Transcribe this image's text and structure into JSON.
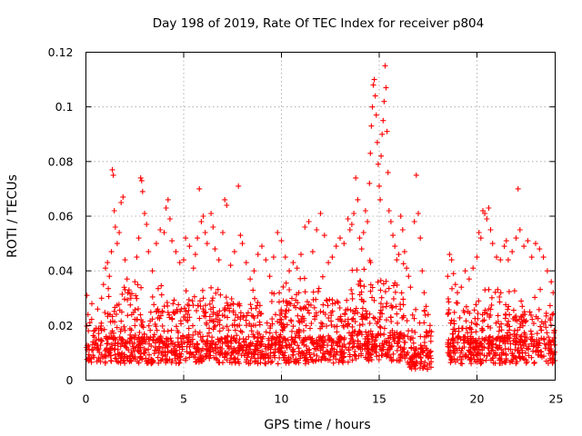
{
  "chart_data": {
    "type": "scatter",
    "title": "Day 198 of 2019, Rate Of TEC Index for receiver p804",
    "xlabel": "GPS time / hours",
    "ylabel": "ROTI / TECUs",
    "xlim": [
      0,
      24
    ],
    "ylim": [
      0,
      0.12
    ],
    "xticks": [
      0,
      5,
      10,
      15,
      20,
      25
    ],
    "yticks": [
      0,
      0.02,
      0.04,
      0.06,
      0.08,
      0.1,
      0.12
    ],
    "xtick_labels": [
      "0",
      "5",
      "10",
      "15",
      "20",
      "25"
    ],
    "ytick_labels": [
      "0",
      "0.02",
      "0.04",
      "0.06",
      "0.08",
      "0.1",
      "0.12"
    ],
    "grid": true,
    "marker": "+",
    "color": "#ff0000",
    "series": [
      {
        "name": "p804",
        "points": [
          [
            0.05,
            0.031
          ],
          [
            0.1,
            0.024
          ],
          [
            0.2,
            0.021
          ],
          [
            0.3,
            0.028
          ],
          [
            0.4,
            0.018
          ],
          [
            0.6,
            0.026
          ],
          [
            0.8,
            0.03
          ],
          [
            0.9,
            0.035
          ],
          [
            1.0,
            0.041
          ],
          [
            1.1,
            0.043
          ],
          [
            1.2,
            0.038
          ],
          [
            1.3,
            0.047
          ],
          [
            1.35,
            0.077
          ],
          [
            1.4,
            0.075
          ],
          [
            1.45,
            0.062
          ],
          [
            1.5,
            0.056
          ],
          [
            1.6,
            0.05
          ],
          [
            1.7,
            0.054
          ],
          [
            1.8,
            0.065
          ],
          [
            1.9,
            0.067
          ],
          [
            2.0,
            0.044
          ],
          [
            2.1,
            0.037
          ],
          [
            2.2,
            0.033
          ],
          [
            2.3,
            0.03
          ],
          [
            2.5,
            0.036
          ],
          [
            2.6,
            0.045
          ],
          [
            2.7,
            0.052
          ],
          [
            2.8,
            0.074
          ],
          [
            2.85,
            0.073
          ],
          [
            2.9,
            0.069
          ],
          [
            3.0,
            0.061
          ],
          [
            3.1,
            0.057
          ],
          [
            3.2,
            0.047
          ],
          [
            3.4,
            0.04
          ],
          [
            3.6,
            0.05
          ],
          [
            3.8,
            0.055
          ],
          [
            4.0,
            0.054
          ],
          [
            4.1,
            0.063
          ],
          [
            4.2,
            0.066
          ],
          [
            4.3,
            0.059
          ],
          [
            4.4,
            0.051
          ],
          [
            4.6,
            0.047
          ],
          [
            4.8,
            0.043
          ],
          [
            5.0,
            0.044
          ],
          [
            5.1,
            0.052
          ],
          [
            5.3,
            0.049
          ],
          [
            5.5,
            0.041
          ],
          [
            5.6,
            0.046
          ],
          [
            5.7,
            0.052
          ],
          [
            5.8,
            0.07
          ],
          [
            5.9,
            0.058
          ],
          [
            6.0,
            0.06
          ],
          [
            6.1,
            0.054
          ],
          [
            6.2,
            0.05
          ],
          [
            6.4,
            0.061
          ],
          [
            6.5,
            0.056
          ],
          [
            6.6,
            0.048
          ],
          [
            6.8,
            0.044
          ],
          [
            7.0,
            0.054
          ],
          [
            7.1,
            0.066
          ],
          [
            7.2,
            0.064
          ],
          [
            7.4,
            0.042
          ],
          [
            7.6,
            0.047
          ],
          [
            7.8,
            0.071
          ],
          [
            7.9,
            0.053
          ],
          [
            8.0,
            0.05
          ],
          [
            8.2,
            0.043
          ],
          [
            8.4,
            0.037
          ],
          [
            8.6,
            0.04
          ],
          [
            8.8,
            0.046
          ],
          [
            9.0,
            0.049
          ],
          [
            9.2,
            0.044
          ],
          [
            9.4,
            0.038
          ],
          [
            9.6,
            0.045
          ],
          [
            9.8,
            0.054
          ],
          [
            10.0,
            0.051
          ],
          [
            10.2,
            0.045
          ],
          [
            10.4,
            0.04
          ],
          [
            10.6,
            0.043
          ],
          [
            10.8,
            0.041
          ],
          [
            11.0,
            0.046
          ],
          [
            11.2,
            0.056
          ],
          [
            11.4,
            0.058
          ],
          [
            11.6,
            0.047
          ],
          [
            11.8,
            0.055
          ],
          [
            12.0,
            0.061
          ],
          [
            12.2,
            0.053
          ],
          [
            12.4,
            0.043
          ],
          [
            12.6,
            0.045
          ],
          [
            12.8,
            0.049
          ],
          [
            13.0,
            0.052
          ],
          [
            13.2,
            0.05
          ],
          [
            13.4,
            0.059
          ],
          [
            13.5,
            0.055
          ],
          [
            13.6,
            0.057
          ],
          [
            13.7,
            0.061
          ],
          [
            13.8,
            0.074
          ],
          [
            13.9,
            0.066
          ],
          [
            14.0,
            0.052
          ],
          [
            14.1,
            0.048
          ],
          [
            14.2,
            0.054
          ],
          [
            14.3,
            0.062
          ],
          [
            14.4,
            0.058
          ],
          [
            14.5,
            0.072
          ],
          [
            14.55,
            0.083
          ],
          [
            14.6,
            0.093
          ],
          [
            14.65,
            0.1
          ],
          [
            14.7,
            0.108
          ],
          [
            14.75,
            0.11
          ],
          [
            14.8,
            0.104
          ],
          [
            14.85,
            0.097
          ],
          [
            14.9,
            0.087
          ],
          [
            14.95,
            0.079
          ],
          [
            15.0,
            0.071
          ],
          [
            15.05,
            0.066
          ],
          [
            15.1,
            0.082
          ],
          [
            15.15,
            0.09
          ],
          [
            15.2,
            0.095
          ],
          [
            15.25,
            0.102
          ],
          [
            15.3,
            0.115
          ],
          [
            15.35,
            0.107
          ],
          [
            15.4,
            0.091
          ],
          [
            15.45,
            0.076
          ],
          [
            15.5,
            0.062
          ],
          [
            15.6,
            0.058
          ],
          [
            15.7,
            0.053
          ],
          [
            15.8,
            0.049
          ],
          [
            15.9,
            0.044
          ],
          [
            16.0,
            0.046
          ],
          [
            16.1,
            0.06
          ],
          [
            16.2,
            0.055
          ],
          [
            16.3,
            0.047
          ],
          [
            16.4,
            0.041
          ],
          [
            16.5,
            0.038
          ],
          [
            16.6,
            0.034
          ],
          [
            16.8,
            0.058
          ],
          [
            16.9,
            0.075
          ],
          [
            17.0,
            0.061
          ],
          [
            17.1,
            0.052
          ],
          [
            17.2,
            0.04
          ],
          [
            17.3,
            0.032
          ],
          [
            17.4,
            0.027
          ],
          [
            17.5,
            0.024
          ],
          [
            17.6,
            0.02
          ],
          [
            18.5,
            0.038
          ],
          [
            18.6,
            0.046
          ],
          [
            18.7,
            0.044
          ],
          [
            18.8,
            0.039
          ],
          [
            18.9,
            0.035
          ],
          [
            19.0,
            0.032
          ],
          [
            19.2,
            0.034
          ],
          [
            19.4,
            0.04
          ],
          [
            19.6,
            0.037
          ],
          [
            19.8,
            0.041
          ],
          [
            20.0,
            0.045
          ],
          [
            20.1,
            0.054
          ],
          [
            20.2,
            0.052
          ],
          [
            20.3,
            0.062
          ],
          [
            20.4,
            0.061
          ],
          [
            20.5,
            0.059
          ],
          [
            20.6,
            0.063
          ],
          [
            20.7,
            0.055
          ],
          [
            20.8,
            0.05
          ],
          [
            21.0,
            0.045
          ],
          [
            21.2,
            0.044
          ],
          [
            21.4,
            0.049
          ],
          [
            21.5,
            0.051
          ],
          [
            21.6,
            0.044
          ],
          [
            21.8,
            0.047
          ],
          [
            22.0,
            0.052
          ],
          [
            22.1,
            0.07
          ],
          [
            22.2,
            0.055
          ],
          [
            22.4,
            0.049
          ],
          [
            22.6,
            0.051
          ],
          [
            22.8,
            0.045
          ],
          [
            23.0,
            0.05
          ],
          [
            23.2,
            0.048
          ],
          [
            23.4,
            0.045
          ],
          [
            23.6,
            0.04
          ],
          [
            23.8,
            0.036
          ],
          [
            23.9,
            0.032
          ]
        ]
      }
    ],
    "dense_bands": [
      {
        "x_range": [
          0,
          1.0
        ],
        "y_base": [
          0.006,
          0.014
        ],
        "y_peak": [
          0.02,
          0.026
        ],
        "density": 60
      },
      {
        "x_range": [
          1.0,
          5.0
        ],
        "y_base": [
          0.006,
          0.016
        ],
        "y_peak": [
          0.028,
          0.035
        ],
        "density": 95
      },
      {
        "x_range": [
          5.0,
          10.0
        ],
        "y_base": [
          0.006,
          0.016
        ],
        "y_peak": [
          0.028,
          0.034
        ],
        "density": 95
      },
      {
        "x_range": [
          10.0,
          13.5
        ],
        "y_base": [
          0.006,
          0.016
        ],
        "y_peak": [
          0.03,
          0.038
        ],
        "density": 95
      },
      {
        "x_range": [
          13.5,
          16.3
        ],
        "y_base": [
          0.007,
          0.018
        ],
        "y_peak": [
          0.036,
          0.046
        ],
        "density": 100
      },
      {
        "x_range": [
          16.3,
          17.7
        ],
        "y_base": [
          0.004,
          0.012
        ],
        "y_peak": [
          0.02,
          0.026
        ],
        "density": 80
      },
      {
        "x_range": [
          18.5,
          24.0
        ],
        "y_base": [
          0.006,
          0.016
        ],
        "y_peak": [
          0.026,
          0.034
        ],
        "density": 95
      }
    ]
  }
}
